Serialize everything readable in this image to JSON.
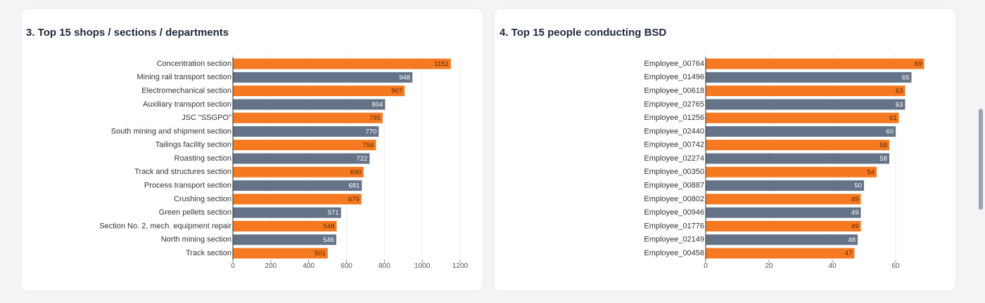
{
  "chart_data": [
    {
      "type": "bar",
      "orientation": "horizontal",
      "title": "3. Top 15 shops / sections / departments",
      "categories": [
        "Concentration section",
        "Mining rail transport section",
        "Electromechanical section",
        "Auxiliary transport section",
        "JSC \"SSGPO\"",
        "South mining and shipment section",
        "Tailings facility section",
        "Roasting section",
        "Track and structures section",
        "Process transport section",
        "Crushing section",
        "Green pellets section",
        "Section No. 2, mech. equipment repair",
        "North mining section",
        "Track section"
      ],
      "values": [
        1151,
        948,
        907,
        804,
        791,
        770,
        756,
        722,
        690,
        681,
        679,
        571,
        548,
        546,
        501
      ],
      "colors": [
        "#f47920",
        "#657388"
      ],
      "xlim": [
        0,
        1200
      ],
      "xticks": [
        0,
        200,
        400,
        600,
        800,
        1000,
        1200
      ],
      "grid": true
    },
    {
      "type": "bar",
      "orientation": "horizontal",
      "title": "4. Top 15 people conducting BSD",
      "categories": [
        "Employee_00764",
        "Employee_01496",
        "Employee_00618",
        "Employee_02765",
        "Employee_01256",
        "Employee_02440",
        "Employee_00742",
        "Employee_02274",
        "Employee_00350",
        "Employee_00887",
        "Employee_00802",
        "Employee_00946",
        "Employee_01776",
        "Employee_02149",
        "Employee_00458"
      ],
      "values": [
        69,
        65,
        63,
        63,
        61,
        60,
        58,
        58,
        54,
        50,
        49,
        49,
        49,
        48,
        47
      ],
      "colors": [
        "#f47920",
        "#657388"
      ],
      "xlim": [
        0,
        70
      ],
      "xticks": [
        0,
        20,
        40,
        60
      ],
      "grid": true
    }
  ]
}
